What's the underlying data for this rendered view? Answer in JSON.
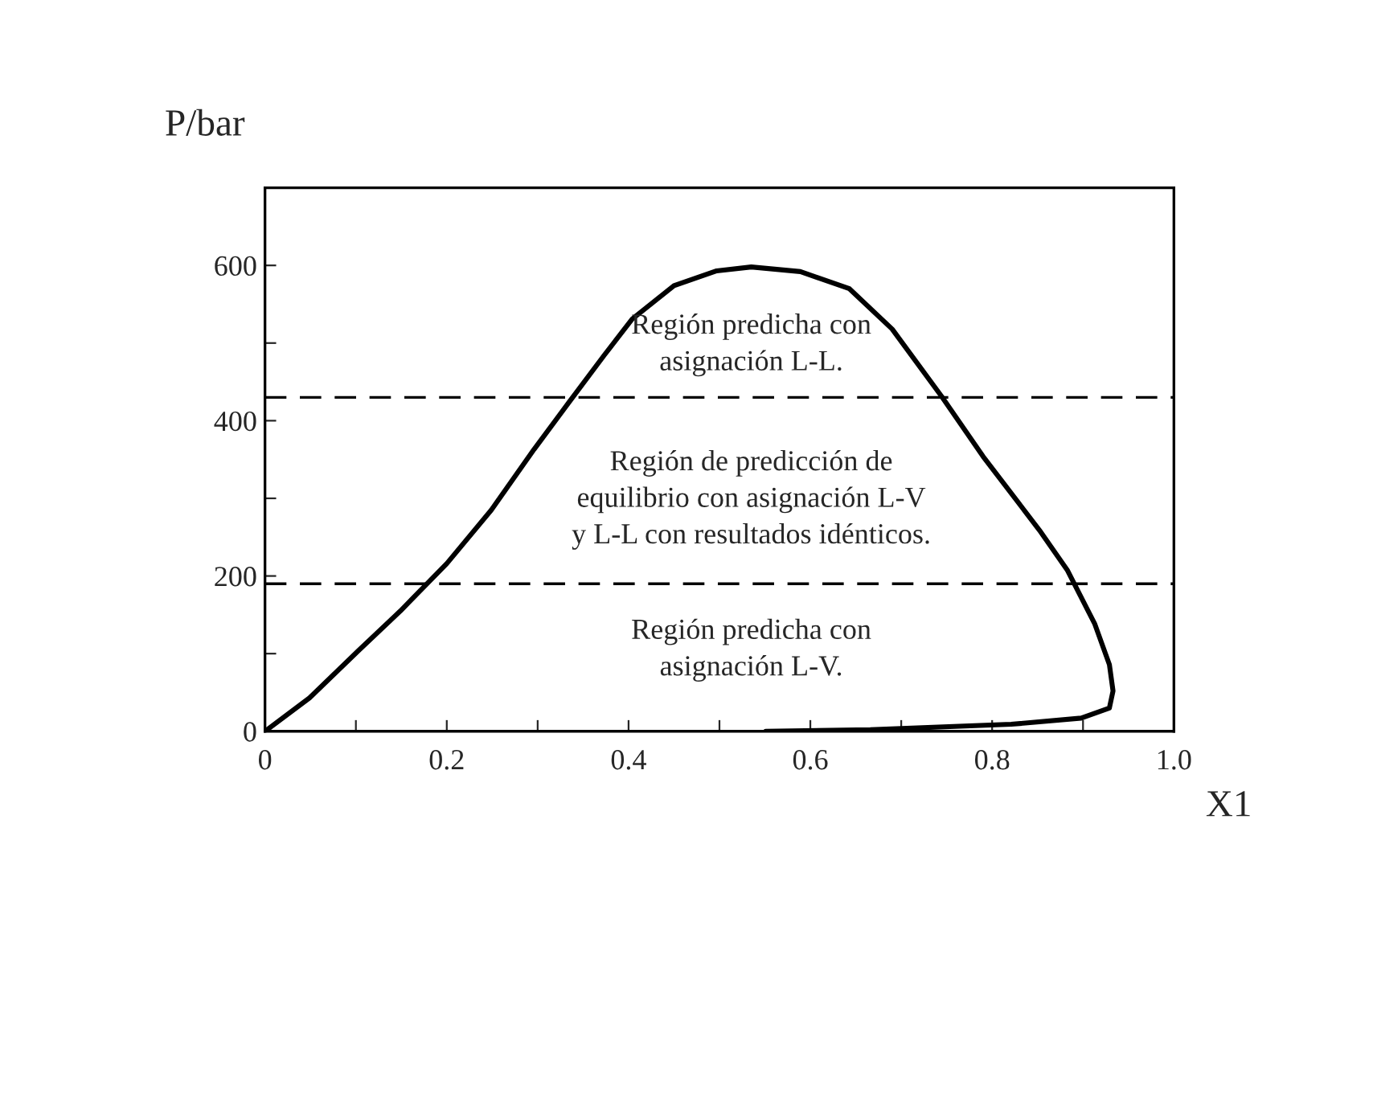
{
  "chart_data": {
    "type": "line",
    "xlabel": "X1",
    "ylabel": "P/bar",
    "x": [
      0,
      0.049,
      0.103,
      0.149,
      0.2,
      0.249,
      0.296,
      0.334,
      0.373,
      0.404,
      0.45,
      0.497,
      0.535,
      0.589,
      0.643,
      0.69,
      0.744,
      0.79,
      0.852,
      0.883,
      0.913,
      0.929,
      0.933,
      0.929,
      0.898,
      0.821,
      0.666,
      0.551
    ],
    "series": [
      {
        "color": "#000000",
        "values": [
          0,
          43,
          104,
          155,
          216,
          285,
          363,
          423,
          484,
          531,
          574,
          593,
          598,
          592,
          570,
          518,
          432,
          354,
          259,
          207,
          138,
          86,
          52,
          30,
          17,
          9,
          2,
          0
        ]
      }
    ],
    "xlim": [
      0,
      1.0
    ],
    "ylim": [
      0,
      700
    ],
    "xticks": [
      0,
      {
        "value": 0.1,
        "label": null
      },
      0.2,
      {
        "value": 0.3,
        "label": null
      },
      0.4,
      {
        "value": 0.5,
        "label": null
      },
      0.6,
      {
        "value": 0.7,
        "label": null
      },
      0.8,
      {
        "value": 0.9,
        "label": null
      },
      {
        "value": 1.0,
        "label": "1.0"
      }
    ],
    "yticks": [
      0,
      {
        "value": 100,
        "label": null
      },
      200,
      {
        "value": 300,
        "label": null
      },
      400,
      {
        "value": 500,
        "label": null
      },
      600
    ],
    "ref_lines": [
      {
        "axis": "y",
        "value": 430,
        "line_style": "dashed",
        "color": "#000000"
      },
      {
        "axis": "y",
        "value": 190,
        "line_style": "dashed",
        "color": "#000000"
      }
    ],
    "annotations": [
      "Región predicha con\nasignación L-L.",
      "Región de predicción de\nequilibrio con asignación L-V\ny L-L con resultados idénticos.",
      "Región predicha con\nasignación L-V."
    ],
    "grid": false,
    "legend": false,
    "marker": "none",
    "line_style": "solid"
  }
}
